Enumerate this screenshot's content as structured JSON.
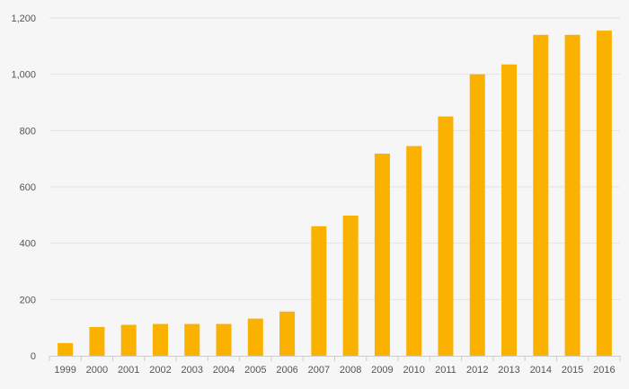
{
  "chart_data": {
    "type": "bar",
    "title": "",
    "xlabel": "",
    "ylabel": "",
    "categories": [
      "1999",
      "2000",
      "2001",
      "2002",
      "2003",
      "2004",
      "2005",
      "2006",
      "2007",
      "2008",
      "2009",
      "2010",
      "2011",
      "2012",
      "2013",
      "2014",
      "2015",
      "2016"
    ],
    "values": [
      45,
      102,
      110,
      113,
      113,
      113,
      132,
      157,
      460,
      498,
      718,
      745,
      850,
      1000,
      1035,
      1140,
      1140,
      1155
    ],
    "ylim": [
      0,
      1200
    ],
    "yticks": [
      0,
      200,
      400,
      600,
      800,
      1000,
      1200
    ],
    "ytick_labels": [
      "0",
      "200",
      "400",
      "600",
      "800",
      "1,000",
      "1,200"
    ],
    "grid": true,
    "legend": "none",
    "colors": {
      "bar": "#FBB100",
      "grid": "#e3e3e3",
      "axis": "#cccccc",
      "background": "#f6f6f6"
    }
  }
}
